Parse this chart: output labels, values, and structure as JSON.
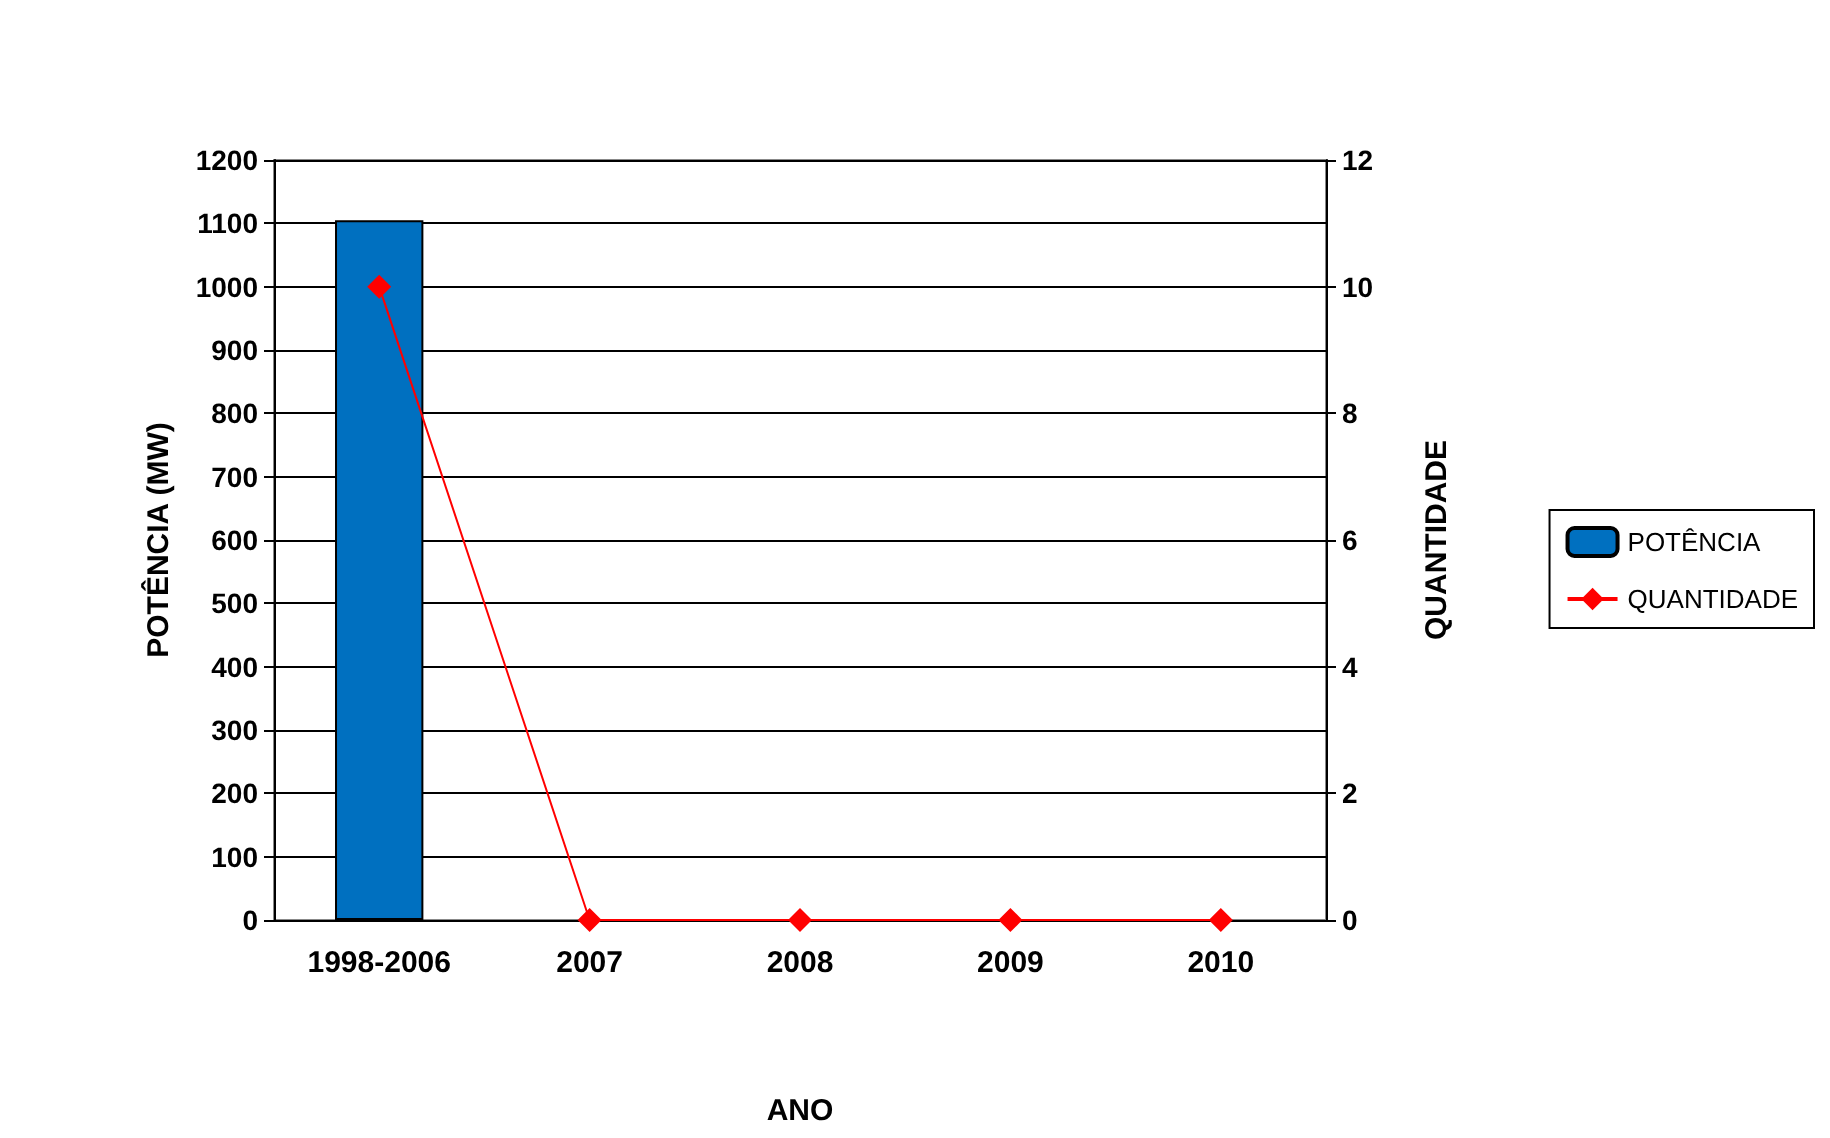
{
  "chart_data": {
    "type": "bar",
    "xlabel": "ANO",
    "ylabel": "POTÊNCIA (MW)",
    "y2label": "QUANTIDADE",
    "categories": [
      "1998-2006",
      "2007",
      "2008",
      "2009",
      "2010"
    ],
    "series": [
      {
        "name": "POTÊNCIA",
        "color": "#0070c0",
        "values": [
          1105,
          0,
          0,
          0,
          0
        ]
      },
      {
        "name": "QUANTIDADE",
        "type": "line",
        "axis": "y2",
        "color": "#ff0000",
        "values": [
          10,
          0,
          0,
          0,
          0
        ]
      }
    ],
    "ylim": [
      0,
      1200
    ],
    "yticks": [
      0,
      100,
      200,
      300,
      400,
      500,
      600,
      700,
      800,
      900,
      1000,
      1100,
      1200
    ],
    "y2lim": [
      0,
      12
    ],
    "y2ticks": [
      0,
      2,
      4,
      6,
      8,
      10,
      12
    ],
    "grid": "y",
    "legend": "right",
    "marker": "diamond"
  }
}
